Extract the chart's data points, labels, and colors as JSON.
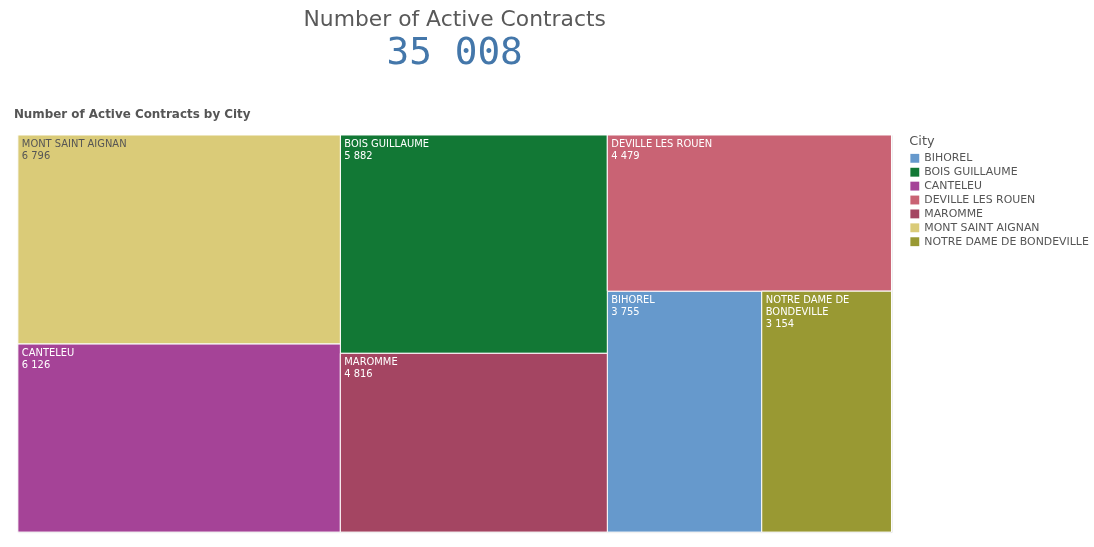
{
  "chart_data": {
    "type": "other",
    "title": "Number of Active Contracts",
    "subtitle": "35 008",
    "annotations": [
      "Number of Active Contracts by City"
    ],
    "legend_title": "City",
    "categories": [
      "BIHOREL",
      "BOIS GUILLAUME",
      "CANTELEU",
      "DEVILLE LES ROUEN",
      "MAROMME",
      "MONT SAINT AIGNAN",
      "NOTRE DAME DE BONDEVILLE"
    ],
    "values": [
      3755,
      5882,
      6126,
      4479,
      4816,
      6796,
      3154
    ],
    "value_labels": [
      "3 755",
      "5 882",
      "6 126",
      "4 479",
      "4 816",
      "6 796",
      "3 154"
    ],
    "colors": [
      "#6699cc",
      "#127835",
      "#a54397",
      "#c96374",
      "#a44562",
      "#dacb78",
      "#999933"
    ]
  }
}
